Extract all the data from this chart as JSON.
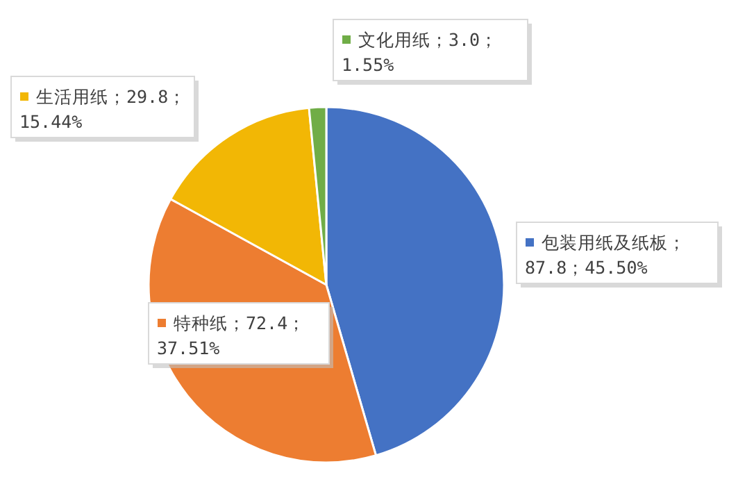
{
  "chart_data": {
    "type": "pie",
    "categories": [
      "包装用纸及纸板",
      "特种纸",
      "生活用纸",
      "文化用纸"
    ],
    "values": [
      87.8,
      72.4,
      29.8,
      3.0
    ],
    "value_labels": [
      "；87.8；45.50%",
      "；72.4；37.51%",
      "；29.8；15.44%",
      "；3.0；1.55%"
    ],
    "colors": [
      "#4472c4",
      "#ed7d31",
      "#f2b705",
      "#70ad47"
    ],
    "legend": "top"
  }
}
